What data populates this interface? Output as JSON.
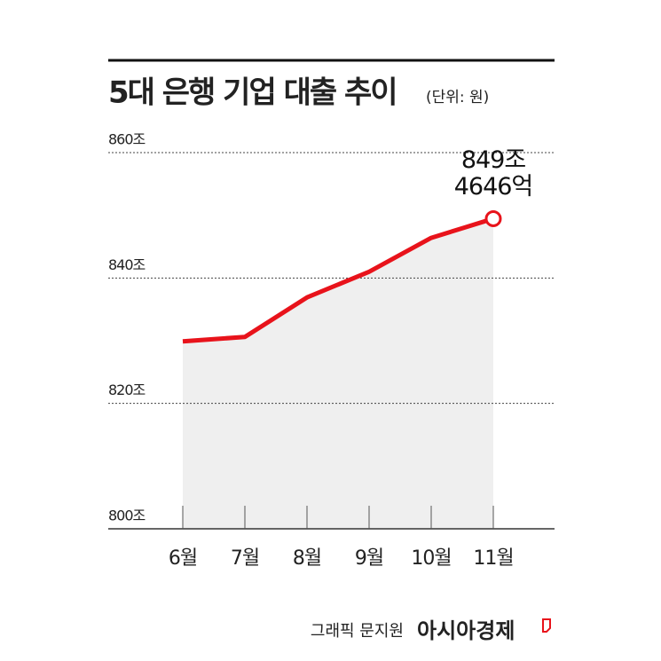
{
  "chart_data": {
    "type": "line",
    "title": "5대 은행 기업 대출 추이",
    "subtitle": "(단위: 원)",
    "categories": [
      "6월",
      "7월",
      "8월",
      "9월",
      "10월",
      "11월"
    ],
    "values": [
      829.9,
      830.6,
      836.9,
      841,
      846.4,
      849.4646
    ],
    "value_labels": [
      null,
      null,
      null,
      null,
      null,
      "849조\n4646억"
    ],
    "color": "#e8131b",
    "area_color": "#efefef",
    "ylim": [
      800,
      860
    ],
    "yticks": [
      {
        "value": 800,
        "label": "800조"
      },
      {
        "value": 820,
        "label": "820조"
      },
      {
        "value": 840,
        "label": "840조"
      },
      {
        "value": 860,
        "label": "860조"
      }
    ],
    "grid": true,
    "source": "그래픽 문지원",
    "brand": "아시아경제"
  }
}
